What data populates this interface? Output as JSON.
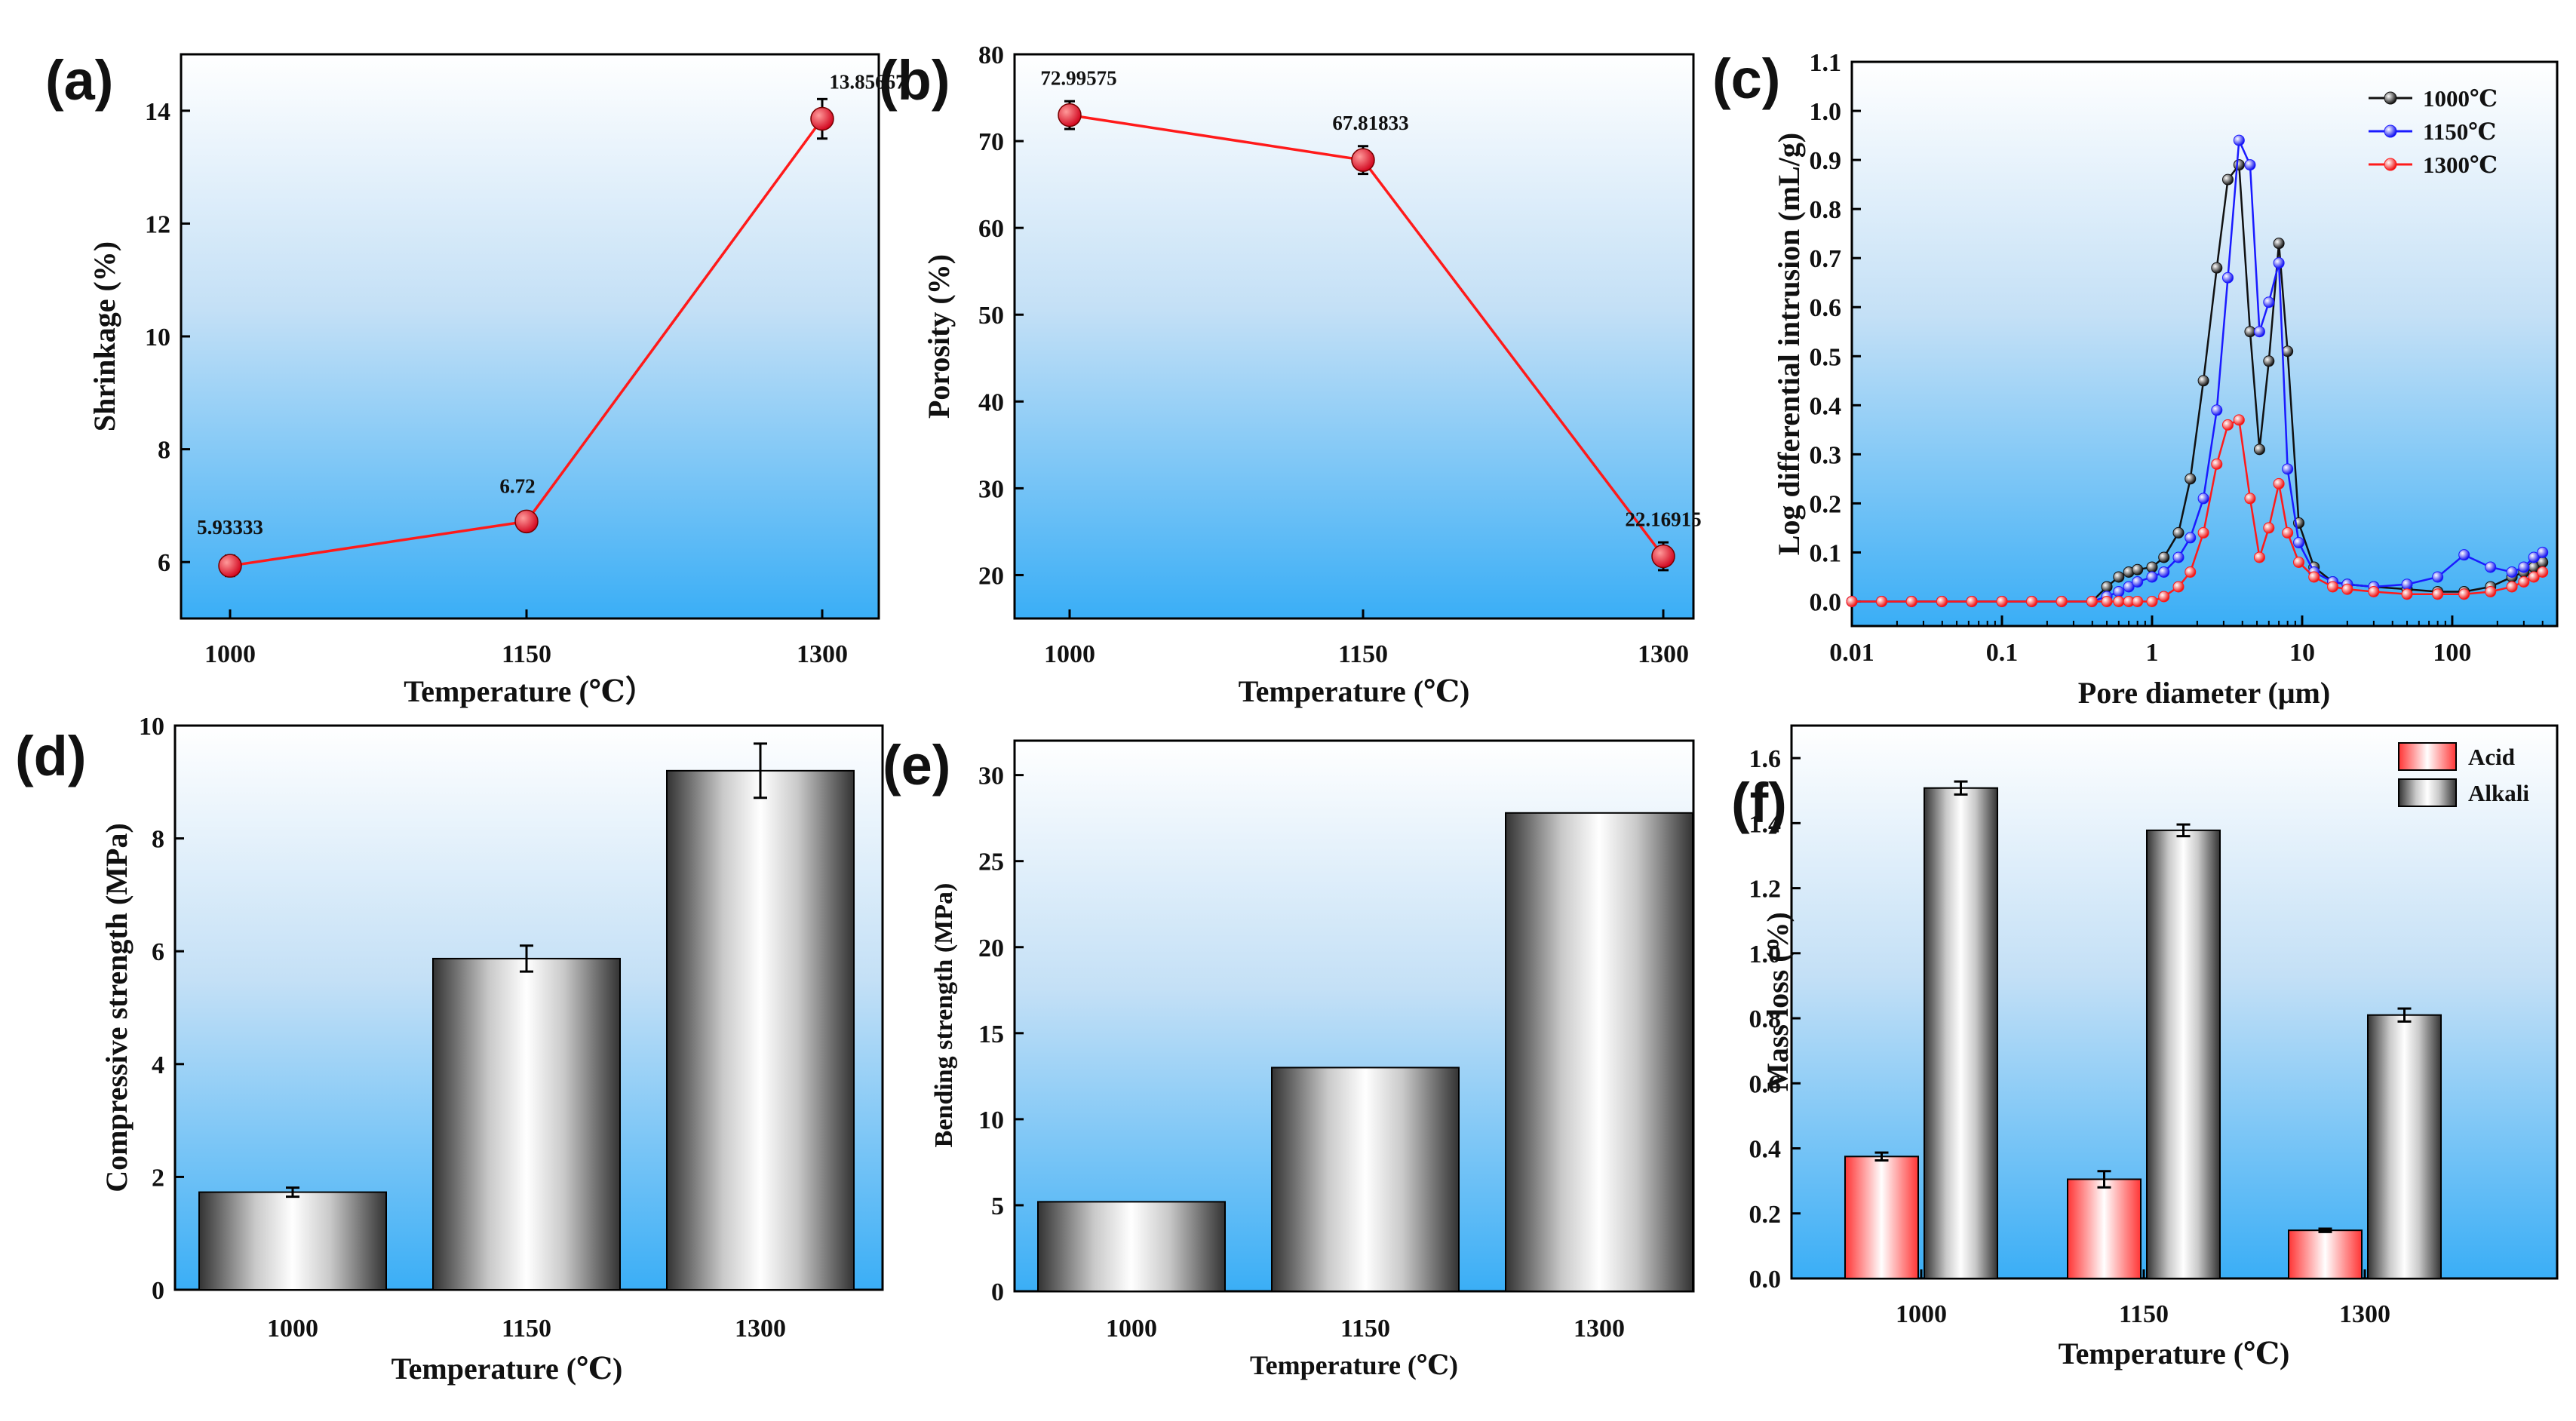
{
  "chart_data": [
    {
      "id": "a",
      "panel_label": "(a)",
      "type": "line",
      "xlabel": "Temperature (℃）",
      "ylabel": "Shrinkage (%)",
      "categories": [
        "1000",
        "1150",
        "1300"
      ],
      "ylim": [
        5,
        15
      ],
      "yticks": [
        "6",
        "8",
        "10",
        "12",
        "14"
      ],
      "values": [
        5.93333,
        6.72,
        13.85667
      ],
      "errors": [
        0.18,
        0.15,
        0.35
      ],
      "data_labels": [
        "5.93333",
        "6.72",
        "13.85667"
      ],
      "colors": {
        "line": "#ff1a1a",
        "marker": "#e8001c"
      }
    },
    {
      "id": "b",
      "panel_label": "(b)",
      "type": "line",
      "xlabel": "Temperature (℃)",
      "ylabel": "Porosity (%)",
      "categories": [
        "1000",
        "1150",
        "1300"
      ],
      "ylim": [
        15,
        80
      ],
      "yticks": [
        "20",
        "30",
        "40",
        "50",
        "60",
        "70",
        "80"
      ],
      "values": [
        72.99575,
        67.81833,
        22.16915
      ],
      "errors": [
        1.6,
        1.6,
        1.6
      ],
      "data_labels": [
        "72.99575",
        "67.81833",
        "22.16915"
      ],
      "colors": {
        "line": "#ff1a1a",
        "marker": "#e8001c"
      }
    },
    {
      "id": "c",
      "panel_label": "(c)",
      "type": "line",
      "xlabel": "Pore  diameter (μm)",
      "ylabel": "Log differential intrusion (mL/g)",
      "xscale": "log",
      "xlim": [
        0.01,
        500
      ],
      "xticks": [
        "0.01",
        "0.1",
        "1",
        "10",
        "100"
      ],
      "ylim": [
        -0.05,
        1.1
      ],
      "yticks": [
        "0.0",
        "0.1",
        "0.2",
        "0.3",
        "0.4",
        "0.5",
        "0.6",
        "0.7",
        "0.8",
        "0.9",
        "1.0",
        "1.1"
      ],
      "legend_position": "top-right",
      "series": [
        {
          "name": "1000℃",
          "color": "#111111",
          "x": [
            0.01,
            0.0158,
            0.025,
            0.0398,
            0.063,
            0.1,
            0.158,
            0.25,
            0.398,
            0.5,
            0.6,
            0.7,
            0.8,
            1,
            1.2,
            1.5,
            1.8,
            2.2,
            2.7,
            3.2,
            3.8,
            4.5,
            5.2,
            6,
            7,
            8,
            9.5,
            12,
            16,
            20,
            30,
            50,
            80,
            120,
            180,
            250,
            300,
            350,
            400
          ],
          "y": [
            0,
            0,
            0,
            0,
            0,
            0,
            0,
            0,
            0,
            0.03,
            0.05,
            0.06,
            0.065,
            0.07,
            0.09,
            0.14,
            0.25,
            0.45,
            0.68,
            0.86,
            0.89,
            0.55,
            0.31,
            0.49,
            0.73,
            0.51,
            0.16,
            0.07,
            0.04,
            0.035,
            0.03,
            0.025,
            0.02,
            0.02,
            0.03,
            0.05,
            0.06,
            0.07,
            0.08
          ]
        },
        {
          "name": "1150℃",
          "color": "#1a1aff",
          "x": [
            0.01,
            0.0158,
            0.025,
            0.0398,
            0.063,
            0.1,
            0.158,
            0.25,
            0.398,
            0.5,
            0.6,
            0.7,
            0.8,
            1,
            1.2,
            1.5,
            1.8,
            2.2,
            2.7,
            3.2,
            3.8,
            4.5,
            5.2,
            6,
            7,
            8,
            9.5,
            12,
            16,
            20,
            30,
            50,
            80,
            120,
            180,
            250,
            300,
            350,
            400
          ],
          "y": [
            0,
            0,
            0,
            0,
            0,
            0,
            0,
            0,
            0,
            0.01,
            0.02,
            0.03,
            0.04,
            0.05,
            0.06,
            0.09,
            0.13,
            0.21,
            0.39,
            0.66,
            0.94,
            0.89,
            0.55,
            0.61,
            0.69,
            0.27,
            0.12,
            0.06,
            0.04,
            0.035,
            0.03,
            0.035,
            0.05,
            0.095,
            0.07,
            0.06,
            0.07,
            0.09,
            0.1
          ]
        },
        {
          "name": "1300℃",
          "color": "#ff1a1a",
          "x": [
            0.01,
            0.0158,
            0.025,
            0.0398,
            0.063,
            0.1,
            0.158,
            0.25,
            0.398,
            0.5,
            0.6,
            0.7,
            0.8,
            1,
            1.2,
            1.5,
            1.8,
            2.2,
            2.7,
            3.2,
            3.8,
            4.5,
            5.2,
            6,
            7,
            8,
            9.5,
            12,
            16,
            20,
            30,
            50,
            80,
            120,
            180,
            250,
            300,
            350,
            400
          ],
          "y": [
            0,
            0,
            0,
            0,
            0,
            0,
            0,
            0,
            0,
            0,
            0,
            0,
            0,
            0,
            0.01,
            0.03,
            0.06,
            0.14,
            0.28,
            0.36,
            0.37,
            0.21,
            0.09,
            0.15,
            0.24,
            0.14,
            0.08,
            0.05,
            0.03,
            0.025,
            0.02,
            0.015,
            0.015,
            0.015,
            0.02,
            0.03,
            0.04,
            0.05,
            0.06
          ]
        }
      ]
    },
    {
      "id": "d",
      "panel_label": "(d)",
      "type": "bar",
      "xlabel": "Temperature (℃)",
      "ylabel": "Compressive strength (MPa)",
      "categories": [
        "1000",
        "1150",
        "1300"
      ],
      "ylim": [
        0,
        10
      ],
      "yticks": [
        "0",
        "2",
        "4",
        "6",
        "8",
        "10"
      ],
      "values": [
        1.73,
        5.87,
        9.2
      ],
      "errors": [
        0.08,
        0.23,
        0.48
      ]
    },
    {
      "id": "e",
      "panel_label": "(e)",
      "type": "bar",
      "xlabel": "Temperature (℃)",
      "ylabel": "Bending strength (MPa)",
      "categories": [
        "1000",
        "1150",
        "1300"
      ],
      "ylim": [
        0,
        32
      ],
      "yticks": [
        "0",
        "5",
        "10",
        "15",
        "20",
        "25",
        "30"
      ],
      "values": [
        5.2,
        13.0,
        27.8
      ]
    },
    {
      "id": "f",
      "panel_label": "(f)",
      "type": "bar",
      "xlabel": "Temperature (℃)",
      "ylabel": "Mass loss (%)",
      "categories": [
        "1000",
        "1150",
        "1300"
      ],
      "ylim": [
        0,
        1.7
      ],
      "yticks": [
        "0.0",
        "0.2",
        "0.4",
        "0.6",
        "0.8",
        "1.0",
        "1.2",
        "1.4",
        "1.6"
      ],
      "legend_position": "top-right",
      "series": [
        {
          "name": "Acid",
          "values": [
            0.375,
            0.305,
            0.148
          ],
          "errors": [
            0.012,
            0.025,
            0.005
          ],
          "color": "#ff3333"
        },
        {
          "name": "Alkali",
          "values": [
            1.508,
            1.378,
            0.81
          ],
          "errors": [
            0.02,
            0.018,
            0.02
          ],
          "color": "#555555"
        }
      ]
    }
  ]
}
